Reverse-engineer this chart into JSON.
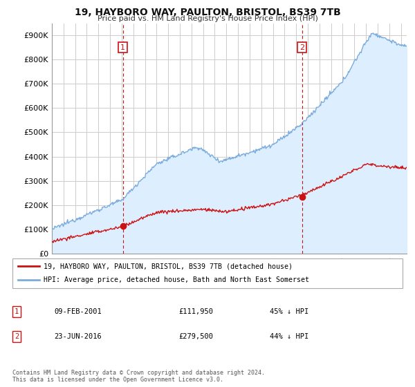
{
  "title_line1": "19, HAYBORO WAY, PAULTON, BRISTOL, BS39 7TB",
  "title_line2": "Price paid vs. HM Land Registry's House Price Index (HPI)",
  "ylim": [
    0,
    950000
  ],
  "yticks": [
    0,
    100000,
    200000,
    300000,
    400000,
    500000,
    600000,
    700000,
    800000,
    900000
  ],
  "ytick_labels": [
    "£0",
    "£100K",
    "£200K",
    "£300K",
    "£400K",
    "£500K",
    "£600K",
    "£700K",
    "£800K",
    "£900K"
  ],
  "hpi_color": "#7aabdc",
  "hpi_fill_color": "#ddeeff",
  "price_color": "#cc1111",
  "vline_color": "#cc1111",
  "background_color": "#ffffff",
  "grid_color": "#cccccc",
  "legend_label_price": "19, HAYBORO WAY, PAULTON, BRISTOL, BS39 7TB (detached house)",
  "legend_label_hpi": "HPI: Average price, detached house, Bath and North East Somerset",
  "sale1_label": "1",
  "sale1_date": "09-FEB-2001",
  "sale1_price": "£111,950",
  "sale1_pct": "45% ↓ HPI",
  "sale1_year": 2001.1,
  "sale1_value": 111950,
  "sale2_label": "2",
  "sale2_date": "23-JUN-2016",
  "sale2_price": "£279,500",
  "sale2_pct": "44% ↓ HPI",
  "sale2_year": 2016.5,
  "sale2_value": 279500,
  "footnote": "Contains HM Land Registry data © Crown copyright and database right 2024.\nThis data is licensed under the Open Government Licence v3.0.",
  "xlim_start": 1995.0,
  "xlim_end": 2025.5
}
